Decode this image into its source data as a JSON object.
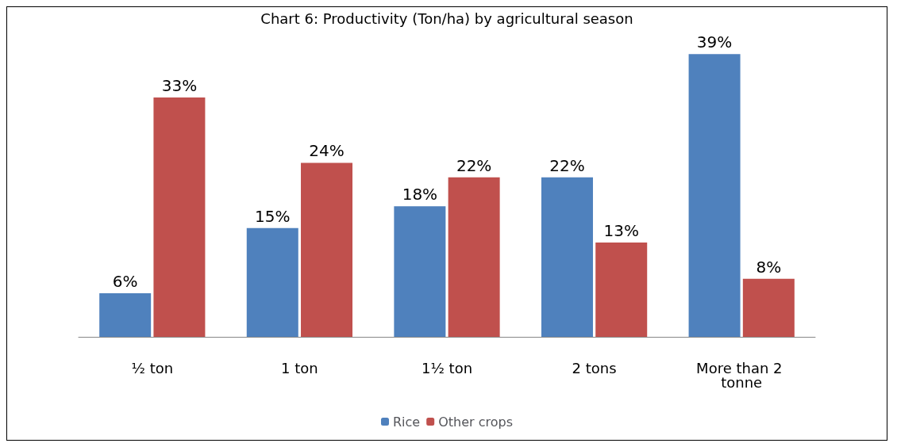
{
  "chart_data": {
    "type": "bar",
    "title": "Chart 6: Productivity (Ton/ha) by agricultural season",
    "categories": [
      "½ ton",
      "1 ton",
      "1½ ton",
      "2 tons",
      "More than 2 tonne"
    ],
    "series": [
      {
        "name": "Rice",
        "color": "#4f81bd",
        "values": [
          6,
          15,
          18,
          22,
          39
        ],
        "value_labels": [
          "6%",
          "15%",
          "18%",
          "22%",
          "39%"
        ]
      },
      {
        "name": "Other crops",
        "color": "#c0504d",
        "values": [
          33,
          24,
          22,
          13,
          8
        ],
        "value_labels": [
          "33%",
          "24%",
          "22%",
          "13%",
          "8%"
        ]
      }
    ],
    "legend": "bottom"
  }
}
